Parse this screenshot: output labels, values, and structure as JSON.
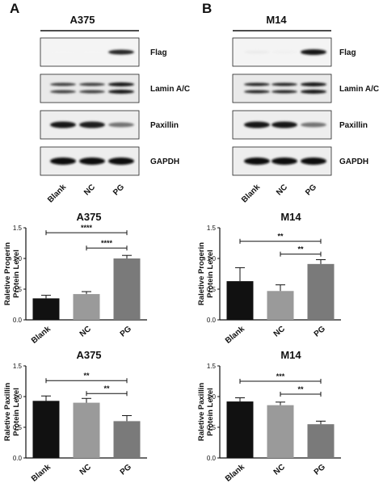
{
  "panels": [
    {
      "letter": "A",
      "cell_line": "A375",
      "blots": [
        {
          "label": "Flag",
          "bg": "#f4f4f4",
          "bands": [
            {
              "intensity": 0.04,
              "thickness": 3
            },
            {
              "intensity": 0.04,
              "thickness": 3
            },
            {
              "intensity": 0.85,
              "thickness": 6
            }
          ]
        },
        {
          "label": "Lamin A/C",
          "bg": "#e9e9e9",
          "doublet": true,
          "bands": [
            {
              "intensity": 0.75,
              "thickness": 4
            },
            {
              "intensity": 0.75,
              "thickness": 4
            },
            {
              "intensity": 0.9,
              "thickness": 5
            }
          ]
        },
        {
          "label": "Paxillin",
          "bg": "#eeeeee",
          "bands": [
            {
              "intensity": 0.92,
              "thickness": 8
            },
            {
              "intensity": 0.88,
              "thickness": 8
            },
            {
              "intensity": 0.55,
              "thickness": 6
            }
          ]
        },
        {
          "label": "GAPDH",
          "bg": "#eeeeee",
          "bands": [
            {
              "intensity": 0.95,
              "thickness": 9
            },
            {
              "intensity": 0.95,
              "thickness": 9
            },
            {
              "intensity": 0.95,
              "thickness": 9
            }
          ]
        }
      ],
      "lanes": [
        "Blank",
        "NC",
        "PG"
      ]
    },
    {
      "letter": "B",
      "cell_line": "M14",
      "blots": [
        {
          "label": "Flag",
          "bg": "#f4f4f4",
          "bands": [
            {
              "intensity": 0.08,
              "thickness": 4
            },
            {
              "intensity": 0.06,
              "thickness": 4
            },
            {
              "intensity": 0.9,
              "thickness": 7
            }
          ]
        },
        {
          "label": "Lamin A/C",
          "bg": "#e9e9e9",
          "doublet": true,
          "bands": [
            {
              "intensity": 0.85,
              "thickness": 4
            },
            {
              "intensity": 0.85,
              "thickness": 4
            },
            {
              "intensity": 0.9,
              "thickness": 5
            }
          ]
        },
        {
          "label": "Paxillin",
          "bg": "#eeeeee",
          "bands": [
            {
              "intensity": 0.92,
              "thickness": 8
            },
            {
              "intensity": 0.9,
              "thickness": 8
            },
            {
              "intensity": 0.55,
              "thickness": 6
            }
          ]
        },
        {
          "label": "GAPDH",
          "bg": "#eeeeee",
          "bands": [
            {
              "intensity": 0.95,
              "thickness": 9
            },
            {
              "intensity": 0.95,
              "thickness": 9
            },
            {
              "intensity": 0.95,
              "thickness": 9
            }
          ]
        }
      ],
      "lanes": [
        "Blank",
        "NC",
        "PG"
      ]
    }
  ],
  "chart_data": [
    {
      "type": "bar",
      "title": "A375",
      "ylabel_lines": [
        "Raletive Progerin",
        "Protein Level"
      ],
      "categories": [
        "Blank",
        "NC",
        "PG"
      ],
      "values": [
        0.35,
        0.42,
        1.0
      ],
      "errors": [
        0.05,
        0.04,
        0.05
      ],
      "ylim": [
        0,
        1.5
      ],
      "yticks": [
        "0.0",
        "0.5",
        "1.0",
        "1.5"
      ],
      "colors": [
        "#111111",
        "#9a9a9a",
        "#7a7a7a"
      ],
      "significance": [
        {
          "from": 0,
          "to": 2,
          "y": 1.42,
          "label": "****"
        },
        {
          "from": 1,
          "to": 2,
          "y": 1.17,
          "label": "****"
        }
      ]
    },
    {
      "type": "bar",
      "title": "M14",
      "ylabel_lines": [
        "Raletive Progerin",
        "Protein Level"
      ],
      "categories": [
        "Blank",
        "NC",
        "PG"
      ],
      "values": [
        0.63,
        0.47,
        0.91
      ],
      "errors": [
        0.22,
        0.1,
        0.07
      ],
      "ylim": [
        0,
        1.5
      ],
      "yticks": [
        "0.0",
        "0.5",
        "1.0",
        "1.5"
      ],
      "colors": [
        "#111111",
        "#9a9a9a",
        "#7a7a7a"
      ],
      "significance": [
        {
          "from": 0,
          "to": 2,
          "y": 1.28,
          "label": "**"
        },
        {
          "from": 1,
          "to": 2,
          "y": 1.07,
          "label": "**"
        }
      ]
    },
    {
      "type": "bar",
      "title": "A375",
      "ylabel_lines": [
        "Raletive Paxillin",
        "Protein Level"
      ],
      "categories": [
        "Blank",
        "NC",
        "PG"
      ],
      "values": [
        0.93,
        0.9,
        0.6
      ],
      "errors": [
        0.08,
        0.07,
        0.09
      ],
      "ylim": [
        0,
        1.5
      ],
      "yticks": [
        "0.0",
        "0.5",
        "1.0",
        "1.5"
      ],
      "colors": [
        "#111111",
        "#9a9a9a",
        "#7a7a7a"
      ],
      "significance": [
        {
          "from": 0,
          "to": 2,
          "y": 1.26,
          "label": "**"
        },
        {
          "from": 1,
          "to": 2,
          "y": 1.05,
          "label": "**"
        }
      ]
    },
    {
      "type": "bar",
      "title": "M14",
      "ylabel_lines": [
        "Raletive Paxillin",
        "Protein Level"
      ],
      "categories": [
        "Blank",
        "NC",
        "PG"
      ],
      "values": [
        0.92,
        0.86,
        0.55
      ],
      "errors": [
        0.06,
        0.05,
        0.05
      ],
      "ylim": [
        0,
        1.5
      ],
      "yticks": [
        "0.0",
        "0.5",
        "1.0",
        "1.5"
      ],
      "colors": [
        "#111111",
        "#9a9a9a",
        "#7a7a7a"
      ],
      "significance": [
        {
          "from": 0,
          "to": 2,
          "y": 1.25,
          "label": "***"
        },
        {
          "from": 1,
          "to": 2,
          "y": 1.04,
          "label": "**"
        }
      ]
    }
  ]
}
